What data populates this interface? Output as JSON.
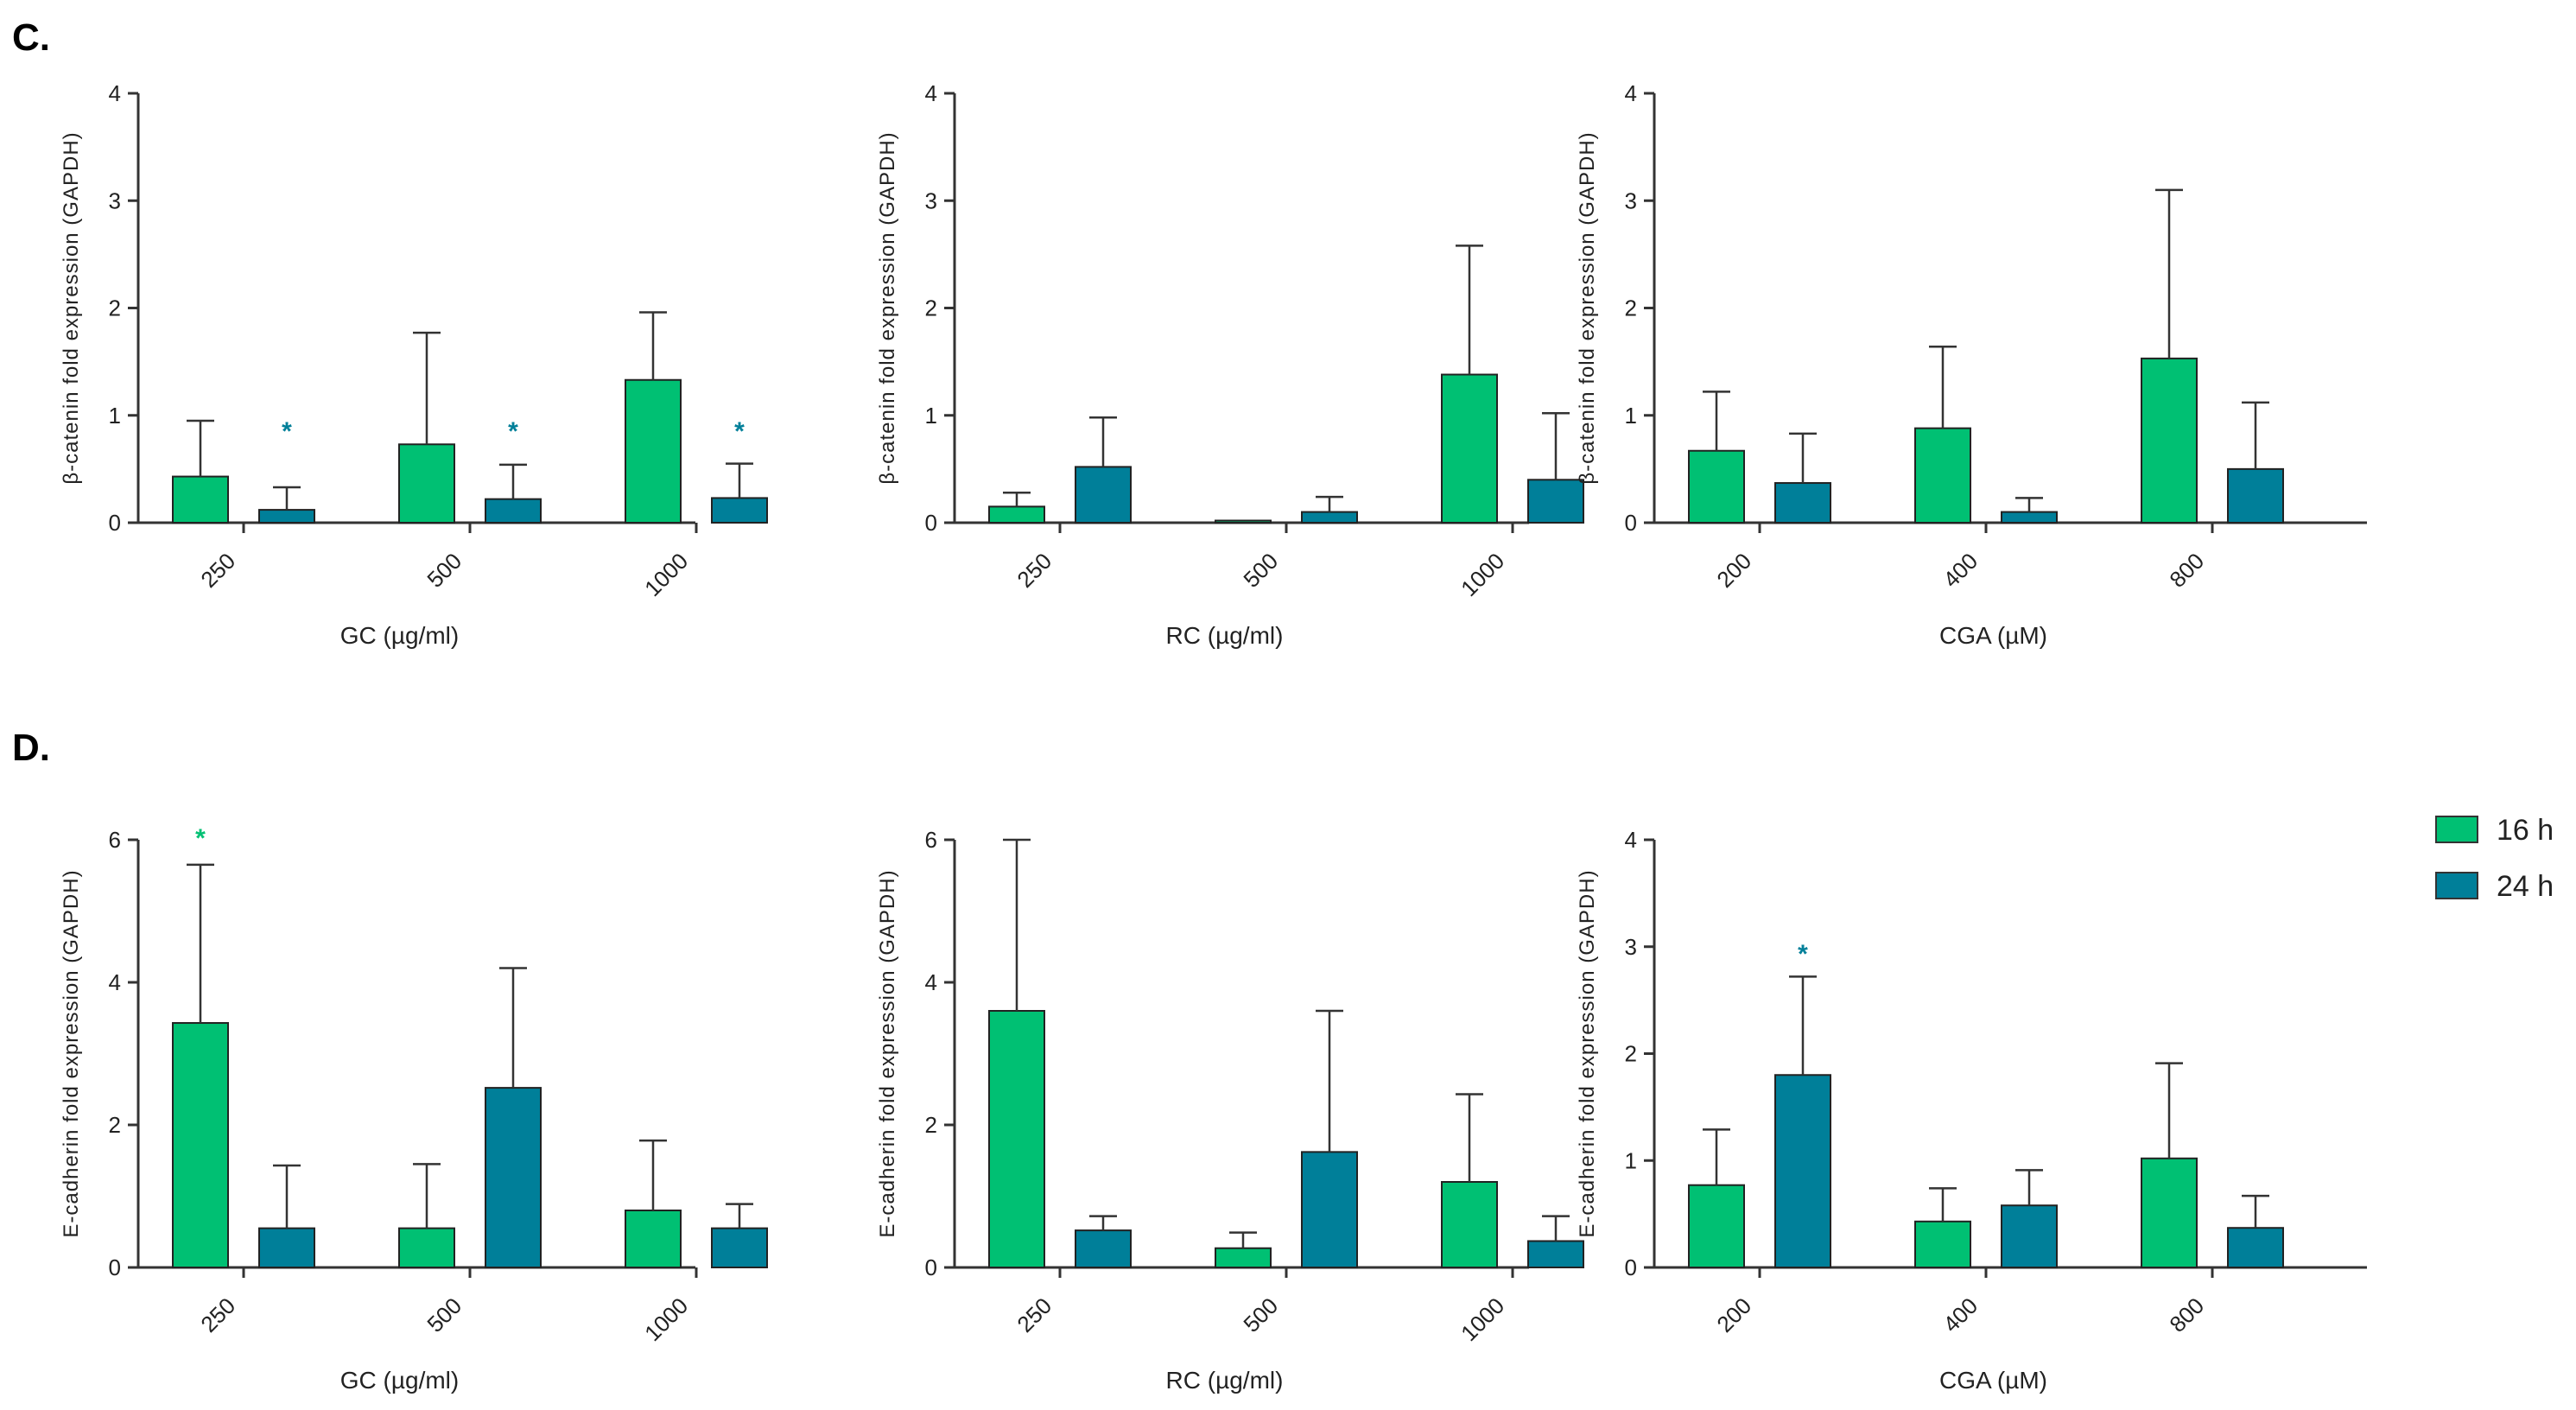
{
  "colors": {
    "h16": "#00C073",
    "h24": "#007F99",
    "axis": "#333333",
    "error": "#333333"
  },
  "panels": [
    {
      "label": "C.",
      "row": 0
    },
    {
      "label": "D.",
      "row": 1
    }
  ],
  "legend": {
    "items": [
      {
        "label": "16 h",
        "color": "#00C073"
      },
      {
        "label": "24 h",
        "color": "#007F99"
      }
    ]
  },
  "chart_data": [
    {
      "type": "bar",
      "row": 0,
      "col": 0,
      "xlabel": "GC  (µg/ml)",
      "ylabel": "β-catenin fold expression (GAPDH)",
      "categories": [
        "250",
        "500",
        "1000"
      ],
      "ylim": [
        0,
        4
      ],
      "yticks": [
        0,
        1,
        2,
        3,
        4
      ],
      "series": [
        {
          "name": "16 h",
          "values": [
            0.43,
            0.73,
            1.33
          ],
          "errors": [
            0.52,
            1.04,
            0.63
          ]
        },
        {
          "name": "24 h",
          "values": [
            0.12,
            0.22,
            0.23
          ],
          "errors": [
            0.21,
            0.32,
            0.32
          ]
        }
      ],
      "annotations": [
        {
          "text": "*",
          "category": 0,
          "series": 1,
          "y": 0.87
        },
        {
          "text": "*",
          "category": 1,
          "series": 1,
          "y": 0.87
        },
        {
          "text": "*",
          "category": 2,
          "series": 1,
          "y": 0.87
        }
      ]
    },
    {
      "type": "bar",
      "row": 0,
      "col": 1,
      "xlabel": "RC (µg/ml)",
      "ylabel": "β-catenin fold expression (GAPDH)",
      "categories": [
        "250",
        "500",
        "1000"
      ],
      "ylim": [
        0,
        4
      ],
      "yticks": [
        0,
        1,
        2,
        3,
        4
      ],
      "series": [
        {
          "name": "16 h",
          "values": [
            0.15,
            0.02,
            1.38
          ],
          "errors": [
            0.13,
            0.0,
            1.2
          ]
        },
        {
          "name": "24 h",
          "values": [
            0.52,
            0.1,
            0.4
          ],
          "errors": [
            0.46,
            0.14,
            0.62
          ]
        }
      ],
      "annotations": []
    },
    {
      "type": "bar",
      "row": 0,
      "col": 2,
      "xlabel": "CGA  (µM)",
      "ylabel": "β-catenin fold expression (GAPDH)",
      "categories": [
        "200",
        "400",
        "800"
      ],
      "ylim": [
        0,
        4
      ],
      "yticks": [
        0,
        1,
        2,
        3,
        4
      ],
      "series": [
        {
          "name": "16 h",
          "values": [
            0.67,
            0.88,
            1.53
          ],
          "errors": [
            0.55,
            0.76,
            1.57
          ]
        },
        {
          "name": "24 h",
          "values": [
            0.37,
            0.1,
            0.5
          ],
          "errors": [
            0.46,
            0.13,
            0.62
          ]
        }
      ],
      "annotations": []
    },
    {
      "type": "bar",
      "row": 1,
      "col": 0,
      "xlabel": "GC  (µg/ml)",
      "ylabel": "E-cadherin fold expression (GAPDH)",
      "categories": [
        "250",
        "500",
        "1000"
      ],
      "ylim": [
        0,
        6
      ],
      "yticks": [
        0,
        2,
        4,
        6
      ],
      "series": [
        {
          "name": "16 h",
          "values": [
            3.43,
            0.55,
            0.8
          ],
          "errors": [
            2.22,
            0.9,
            0.98
          ]
        },
        {
          "name": "24 h",
          "values": [
            0.55,
            2.52,
            0.55
          ],
          "errors": [
            0.88,
            1.68,
            0.34
          ]
        }
      ],
      "annotations": [
        {
          "text": "*",
          "category": 0,
          "series": 0,
          "y": 6.05
        }
      ]
    },
    {
      "type": "bar",
      "row": 1,
      "col": 1,
      "xlabel": "RC (µg/ml)",
      "ylabel": "E-cadherin fold expression (GAPDH)",
      "categories": [
        "250",
        "500",
        "1000"
      ],
      "ylim": [
        0,
        6
      ],
      "yticks": [
        0,
        2,
        4,
        6
      ],
      "series": [
        {
          "name": "16 h",
          "values": [
            3.6,
            0.27,
            1.2
          ],
          "errors": [
            2.4,
            0.22,
            1.23
          ]
        },
        {
          "name": "24 h",
          "values": [
            0.52,
            1.62,
            0.37
          ],
          "errors": [
            0.2,
            1.98,
            0.35
          ]
        }
      ],
      "annotations": []
    },
    {
      "type": "bar",
      "row": 1,
      "col": 2,
      "xlabel": "CGA (µM)",
      "ylabel": "E-cadherin fold expression (GAPDH)",
      "categories": [
        "200",
        "400",
        "800"
      ],
      "ylim": [
        0,
        4
      ],
      "yticks": [
        0,
        1,
        2,
        3,
        4
      ],
      "series": [
        {
          "name": "16 h",
          "values": [
            0.77,
            0.43,
            1.02
          ],
          "errors": [
            0.52,
            0.31,
            0.89
          ]
        },
        {
          "name": "24 h",
          "values": [
            1.8,
            0.58,
            0.37
          ],
          "errors": [
            0.92,
            0.33,
            0.3
          ]
        }
      ],
      "annotations": [
        {
          "text": "*",
          "category": 0,
          "series": 1,
          "y": 2.95
        }
      ]
    }
  ]
}
